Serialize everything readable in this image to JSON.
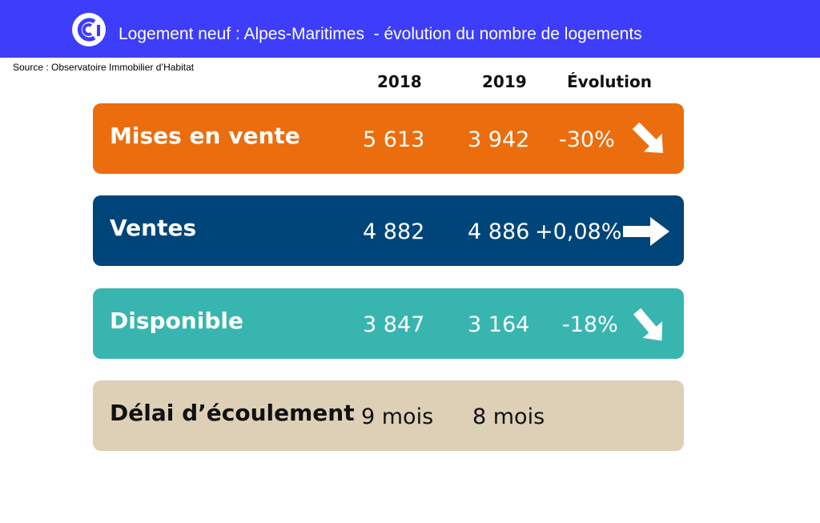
{
  "header": {
    "title": "Logement neuf : Alpes-Maritimes  - évolution du nombre de logements",
    "logo": "cci-logo-icon",
    "background": "#3d3dfb"
  },
  "source": "Source : Observatoire Immobilier d’Habitat",
  "columns": {
    "y2018": "2018",
    "y2019": "2019",
    "evolution": "Évolution"
  },
  "rows": [
    {
      "label": "Mises en vente",
      "y2018": "5 613",
      "y2019": "3 942",
      "evolution": "-30%",
      "arrow": "arrow-down-right-icon",
      "color": "#ec6d0d"
    },
    {
      "label": "Ventes",
      "y2018": "4 882",
      "y2019": "4 886",
      "evolution": "+0,08%",
      "arrow": "arrow-right-icon",
      "color": "#004579"
    },
    {
      "label": "Disponible",
      "y2018": "3 847",
      "y2019": "3 164",
      "evolution": "-18%",
      "arrow": "arrow-down-right-icon",
      "color": "#39b5b0"
    },
    {
      "label": "Délai d’écoulement",
      "y2018": "9 mois",
      "y2019": "8 mois",
      "evolution": "",
      "color": "#ded0b6"
    }
  ]
}
